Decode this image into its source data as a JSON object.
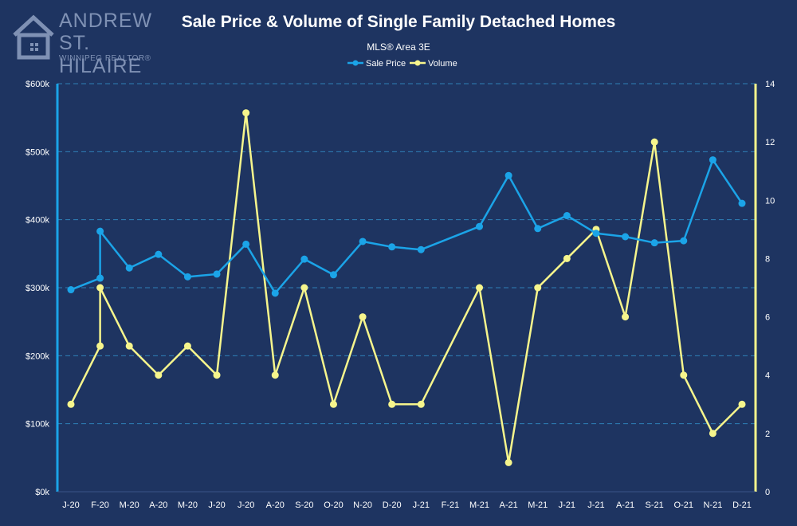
{
  "branding": {
    "name_line1": "ANDREW",
    "name_line2": "ST. HILAIRE",
    "tagline": "WINNIPEG REALTOR®"
  },
  "colors": {
    "background": "#1e3461",
    "price": "#1ba4e8",
    "volume": "#f6f58c",
    "grid": "#2f7fb8",
    "text": "#ffffff",
    "logo": "#7f91b4"
  },
  "chart_data": {
    "type": "line",
    "title": "Sale Price & Volume of Single Family Detached Homes",
    "subtitle": "MLS® Area 3E",
    "categories": [
      "J-20",
      "F-20",
      "M-20",
      "A-20",
      "M-20",
      "J-20",
      "J-20",
      "A-20",
      "S-20",
      "O-20",
      "N-20",
      "D-20",
      "J-21",
      "F-21",
      "M-21",
      "A-21",
      "M-21",
      "J-21",
      "J-21",
      "A-21",
      "S-21",
      "O-21",
      "N-21",
      "D-21"
    ],
    "y_left": {
      "min": 0,
      "max": 600000,
      "ticks": [
        "$0k",
        "$100k",
        "$200k",
        "$300k",
        "$400k",
        "$500k",
        "$600k"
      ]
    },
    "y_right": {
      "min": 0,
      "max": 14,
      "ticks": [
        "0",
        "2",
        "4",
        "6",
        "8",
        "10",
        "12",
        "14"
      ]
    },
    "grid": true,
    "legend_position": "top-center",
    "series": [
      {
        "name": "Sale Price",
        "axis": "left",
        "values": [
          297000,
          314000,
          329000,
          349000,
          316000,
          320000,
          364000,
          292000,
          342000,
          319000,
          368000,
          360000,
          356000,
          null,
          390000,
          465000,
          387000,
          406000,
          380000,
          375000,
          366000,
          369000,
          488000,
          424000
        ],
        "extra_point": {
          "category_index": 1,
          "value": 383000
        }
      },
      {
        "name": "Volume",
        "axis": "right",
        "values": [
          3,
          5,
          5,
          4,
          5,
          4,
          13,
          4,
          7,
          3,
          6,
          3,
          3,
          null,
          7,
          1,
          7,
          8,
          9,
          6,
          12,
          4,
          2,
          3
        ],
        "extra_point": {
          "category_index": 1,
          "value": 7
        }
      }
    ]
  }
}
